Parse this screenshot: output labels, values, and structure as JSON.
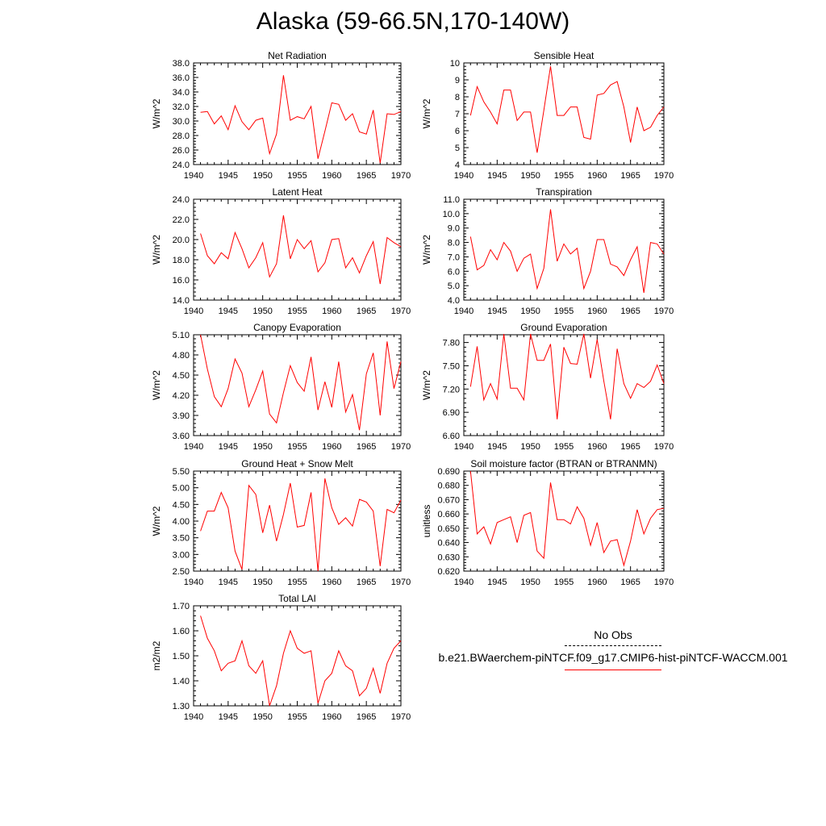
{
  "title": "Alaska (59-66.5N,170-140W)",
  "legend": {
    "entries": [
      {
        "label": "No Obs",
        "style": "dashed",
        "color": "#000000"
      },
      {
        "label": "b.e21.BWaerchem-piNTCF.f09_g17.CMIP6-hist-piNTCF-WACCM.001",
        "style": "solid",
        "color": "#ff0000"
      }
    ]
  },
  "series_color": "#ff0000",
  "chart_data": [
    {
      "type": "line",
      "title": "Net Radiation",
      "ylabel": "W/m^2",
      "xlim": [
        1940,
        1970
      ],
      "ylim": [
        24.0,
        38.0
      ],
      "xticks": [
        "1940",
        "1945",
        "1950",
        "1955",
        "1960",
        "1965",
        "1970"
      ],
      "yticks": [
        "24.0",
        "26.0",
        "28.0",
        "30.0",
        "32.0",
        "34.0",
        "36.0",
        "38.0"
      ],
      "x": [
        1941,
        1942,
        1943,
        1944,
        1945,
        1946,
        1947,
        1948,
        1949,
        1950,
        1951,
        1952,
        1953,
        1954,
        1955,
        1956,
        1957,
        1958,
        1959,
        1960,
        1961,
        1962,
        1963,
        1964,
        1965,
        1966,
        1967,
        1968,
        1969,
        1970
      ],
      "values": [
        31.2,
        31.3,
        29.6,
        30.7,
        28.8,
        32.1,
        29.9,
        28.8,
        30.1,
        30.4,
        25.5,
        28.2,
        36.3,
        30.1,
        30.6,
        30.3,
        32.0,
        24.8,
        28.6,
        32.5,
        32.3,
        30.1,
        31.0,
        28.5,
        28.2,
        31.5,
        24.2,
        31.0,
        30.9,
        31.3
      ]
    },
    {
      "type": "line",
      "title": "Sensible Heat",
      "ylabel": "W/m^2",
      "xlim": [
        1940,
        1970
      ],
      "ylim": [
        4,
        10
      ],
      "xticks": [
        "1940",
        "1945",
        "1950",
        "1955",
        "1960",
        "1965",
        "1970"
      ],
      "yticks": [
        "4",
        "5",
        "6",
        "7",
        "8",
        "9",
        "10"
      ],
      "x": [
        1941,
        1942,
        1943,
        1944,
        1945,
        1946,
        1947,
        1948,
        1949,
        1950,
        1951,
        1952,
        1953,
        1954,
        1955,
        1956,
        1957,
        1958,
        1959,
        1960,
        1961,
        1962,
        1963,
        1964,
        1965,
        1966,
        1967,
        1968,
        1969,
        1970
      ],
      "values": [
        6.9,
        8.6,
        7.7,
        7.1,
        6.4,
        8.4,
        8.4,
        6.6,
        7.1,
        7.1,
        4.7,
        7.2,
        9.8,
        6.9,
        6.9,
        7.4,
        7.4,
        5.6,
        5.5,
        8.1,
        8.2,
        8.7,
        8.9,
        7.4,
        5.3,
        7.4,
        6.0,
        6.2,
        6.9,
        7.4
      ]
    },
    {
      "type": "line",
      "title": "Latent Heat",
      "ylabel": "W/m^2",
      "xlim": [
        1940,
        1970
      ],
      "ylim": [
        14.0,
        24.0
      ],
      "xticks": [
        "1940",
        "1945",
        "1950",
        "1955",
        "1960",
        "1965",
        "1970"
      ],
      "yticks": [
        "14.0",
        "16.0",
        "18.0",
        "20.0",
        "22.0",
        "24.0"
      ],
      "x": [
        1941,
        1942,
        1943,
        1944,
        1945,
        1946,
        1947,
        1948,
        1949,
        1950,
        1951,
        1952,
        1953,
        1954,
        1955,
        1956,
        1957,
        1958,
        1959,
        1960,
        1961,
        1962,
        1963,
        1964,
        1965,
        1966,
        1967,
        1968,
        1969,
        1970
      ],
      "values": [
        20.6,
        18.4,
        17.6,
        18.7,
        18.1,
        20.7,
        19.1,
        17.2,
        18.2,
        19.7,
        16.3,
        17.6,
        22.4,
        18.1,
        20.0,
        19.1,
        19.9,
        16.8,
        17.7,
        20.0,
        20.1,
        17.2,
        18.2,
        16.7,
        18.4,
        19.8,
        15.6,
        20.2,
        19.7,
        19.3
      ]
    },
    {
      "type": "line",
      "title": "Transpiration",
      "ylabel": "W/m^2",
      "xlim": [
        1940,
        1970
      ],
      "ylim": [
        4.0,
        11.0
      ],
      "xticks": [
        "1940",
        "1945",
        "1950",
        "1955",
        "1960",
        "1965",
        "1970"
      ],
      "yticks": [
        "4.0",
        "5.0",
        "6.0",
        "7.0",
        "8.0",
        "9.0",
        "10.0",
        "11.0"
      ],
      "x": [
        1941,
        1942,
        1943,
        1944,
        1945,
        1946,
        1947,
        1948,
        1949,
        1950,
        1951,
        1952,
        1953,
        1954,
        1955,
        1956,
        1957,
        1958,
        1959,
        1960,
        1961,
        1962,
        1963,
        1964,
        1965,
        1966,
        1967,
        1968,
        1969,
        1970
      ],
      "values": [
        8.4,
        6.1,
        6.4,
        7.5,
        6.8,
        8.0,
        7.4,
        6.0,
        6.9,
        7.2,
        4.8,
        6.2,
        10.3,
        6.7,
        7.9,
        7.2,
        7.6,
        4.8,
        6.0,
        8.2,
        8.2,
        6.5,
        6.3,
        5.7,
        6.8,
        7.7,
        4.5,
        8.0,
        7.9,
        7.2
      ]
    },
    {
      "type": "line",
      "title": "Canopy Evaporation",
      "ylabel": "W/m^2",
      "xlim": [
        1940,
        1970
      ],
      "ylim": [
        3.6,
        5.1
      ],
      "xticks": [
        "1940",
        "1945",
        "1950",
        "1955",
        "1960",
        "1965",
        "1970"
      ],
      "yticks": [
        "3.60",
        "3.90",
        "4.20",
        "4.50",
        "4.80",
        "5.10"
      ],
      "x": [
        1941,
        1942,
        1943,
        1944,
        1945,
        1946,
        1947,
        1948,
        1949,
        1950,
        1951,
        1952,
        1953,
        1954,
        1955,
        1956,
        1957,
        1958,
        1959,
        1960,
        1961,
        1962,
        1963,
        1964,
        1965,
        1966,
        1967,
        1968,
        1969,
        1970
      ],
      "values": [
        5.1,
        4.59,
        4.18,
        4.03,
        4.3,
        4.74,
        4.53,
        4.03,
        4.28,
        4.56,
        3.92,
        3.79,
        4.24,
        4.64,
        4.39,
        4.26,
        4.77,
        3.98,
        4.4,
        4.02,
        4.7,
        3.95,
        4.21,
        3.68,
        4.52,
        4.83,
        3.9,
        5.0,
        4.3,
        4.7
      ]
    },
    {
      "type": "line",
      "title": "Ground Evaporation",
      "ylabel": "W/m^2",
      "xlim": [
        1940,
        1970
      ],
      "ylim": [
        6.6,
        7.9
      ],
      "xticks": [
        "1940",
        "1945",
        "1950",
        "1955",
        "1960",
        "1965",
        "1970"
      ],
      "yticks": [
        "6.60",
        "6.90",
        "7.20",
        "7.50",
        "7.80"
      ],
      "x": [
        1941,
        1942,
        1943,
        1944,
        1945,
        1946,
        1947,
        1948,
        1949,
        1950,
        1951,
        1952,
        1953,
        1954,
        1955,
        1956,
        1957,
        1958,
        1959,
        1960,
        1961,
        1962,
        1963,
        1964,
        1965,
        1966,
        1967,
        1968,
        1969,
        1970
      ],
      "values": [
        7.23,
        7.75,
        7.06,
        7.27,
        7.07,
        7.91,
        7.21,
        7.21,
        7.06,
        7.91,
        7.57,
        7.57,
        7.78,
        6.81,
        7.74,
        7.53,
        7.52,
        7.91,
        7.34,
        7.84,
        7.3,
        6.81,
        7.72,
        7.27,
        7.08,
        7.27,
        7.22,
        7.3,
        7.51,
        7.27
      ]
    },
    {
      "type": "line",
      "title": "Ground Heat + Snow Melt",
      "ylabel": "W/m^2",
      "xlim": [
        1940,
        1970
      ],
      "ylim": [
        2.5,
        5.5
      ],
      "xticks": [
        "1940",
        "1945",
        "1950",
        "1955",
        "1960",
        "1965",
        "1970"
      ],
      "yticks": [
        "2.50",
        "3.00",
        "3.50",
        "4.00",
        "4.50",
        "5.00",
        "5.50"
      ],
      "x": [
        1941,
        1942,
        1943,
        1944,
        1945,
        1946,
        1947,
        1948,
        1949,
        1950,
        1951,
        1952,
        1953,
        1954,
        1955,
        1956,
        1957,
        1958,
        1959,
        1960,
        1961,
        1962,
        1963,
        1964,
        1965,
        1966,
        1967,
        1968,
        1969,
        1970
      ],
      "values": [
        3.7,
        4.3,
        4.3,
        4.86,
        4.4,
        3.1,
        2.55,
        5.07,
        4.8,
        3.65,
        4.48,
        3.4,
        4.2,
        5.14,
        3.82,
        3.87,
        4.86,
        2.5,
        5.28,
        4.4,
        3.9,
        4.1,
        3.85,
        4.65,
        4.57,
        4.3,
        2.65,
        4.35,
        4.25,
        4.63
      ]
    },
    {
      "type": "line",
      "title": "Soil moisture factor (BTRAN or BTRANMN)",
      "ylabel": "unitless",
      "xlim": [
        1940,
        1970
      ],
      "ylim": [
        0.62,
        0.69
      ],
      "xticks": [
        "1940",
        "1945",
        "1950",
        "1955",
        "1960",
        "1965",
        "1970"
      ],
      "yticks": [
        "0.620",
        "0.630",
        "0.640",
        "0.650",
        "0.660",
        "0.670",
        "0.680",
        "0.690"
      ],
      "x": [
        1941,
        1942,
        1943,
        1944,
        1945,
        1946,
        1947,
        1948,
        1949,
        1950,
        1951,
        1952,
        1953,
        1954,
        1955,
        1956,
        1957,
        1958,
        1959,
        1960,
        1961,
        1962,
        1963,
        1964,
        1965,
        1966,
        1967,
        1968,
        1969,
        1970
      ],
      "values": [
        0.69,
        0.646,
        0.651,
        0.639,
        0.654,
        0.656,
        0.658,
        0.64,
        0.659,
        0.661,
        0.634,
        0.629,
        0.682,
        0.656,
        0.656,
        0.653,
        0.665,
        0.657,
        0.638,
        0.654,
        0.633,
        0.641,
        0.642,
        0.624,
        0.641,
        0.663,
        0.646,
        0.657,
        0.663,
        0.664
      ]
    },
    {
      "type": "line",
      "title": "Total LAI",
      "ylabel": "m2/m2",
      "xlim": [
        1940,
        1970
      ],
      "ylim": [
        1.3,
        1.7
      ],
      "xticks": [
        "1940",
        "1945",
        "1950",
        "1955",
        "1960",
        "1965",
        "1970"
      ],
      "yticks": [
        "1.30",
        "1.40",
        "1.50",
        "1.60",
        "1.70"
      ],
      "x": [
        1941,
        1942,
        1943,
        1944,
        1945,
        1946,
        1947,
        1948,
        1949,
        1950,
        1951,
        1952,
        1953,
        1954,
        1955,
        1956,
        1957,
        1958,
        1959,
        1960,
        1961,
        1962,
        1963,
        1964,
        1965,
        1966,
        1967,
        1968,
        1969,
        1970
      ],
      "values": [
        1.66,
        1.57,
        1.52,
        1.44,
        1.47,
        1.48,
        1.56,
        1.46,
        1.43,
        1.48,
        1.3,
        1.38,
        1.51,
        1.6,
        1.53,
        1.51,
        1.52,
        1.31,
        1.4,
        1.43,
        1.52,
        1.46,
        1.44,
        1.34,
        1.37,
        1.45,
        1.35,
        1.47,
        1.53,
        1.56
      ]
    }
  ]
}
